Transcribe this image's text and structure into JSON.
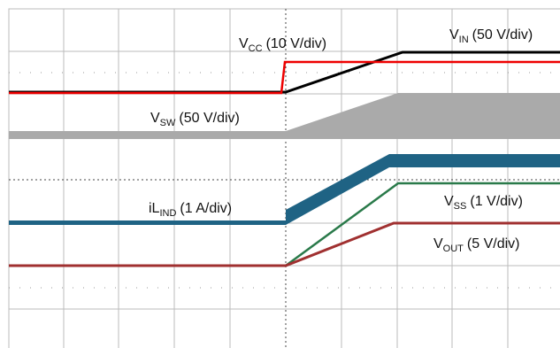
{
  "labels": [
    {
      "symbol": "V",
      "sub": "CC",
      "scale": "(10 V/div)"
    },
    {
      "symbol": "V",
      "sub": "IN",
      "scale": "(50 V/div)"
    },
    {
      "symbol": "V",
      "sub": "SW",
      "scale": "(50 V/div)"
    },
    {
      "symbol": "iL",
      "sub": "IND",
      "scale": "(1 A/div)"
    },
    {
      "symbol": "V",
      "sub": "SS",
      "scale": "(1 V/div)"
    },
    {
      "symbol": "V",
      "sub": "OUT",
      "scale": "(5 V/div)"
    }
  ]
}
